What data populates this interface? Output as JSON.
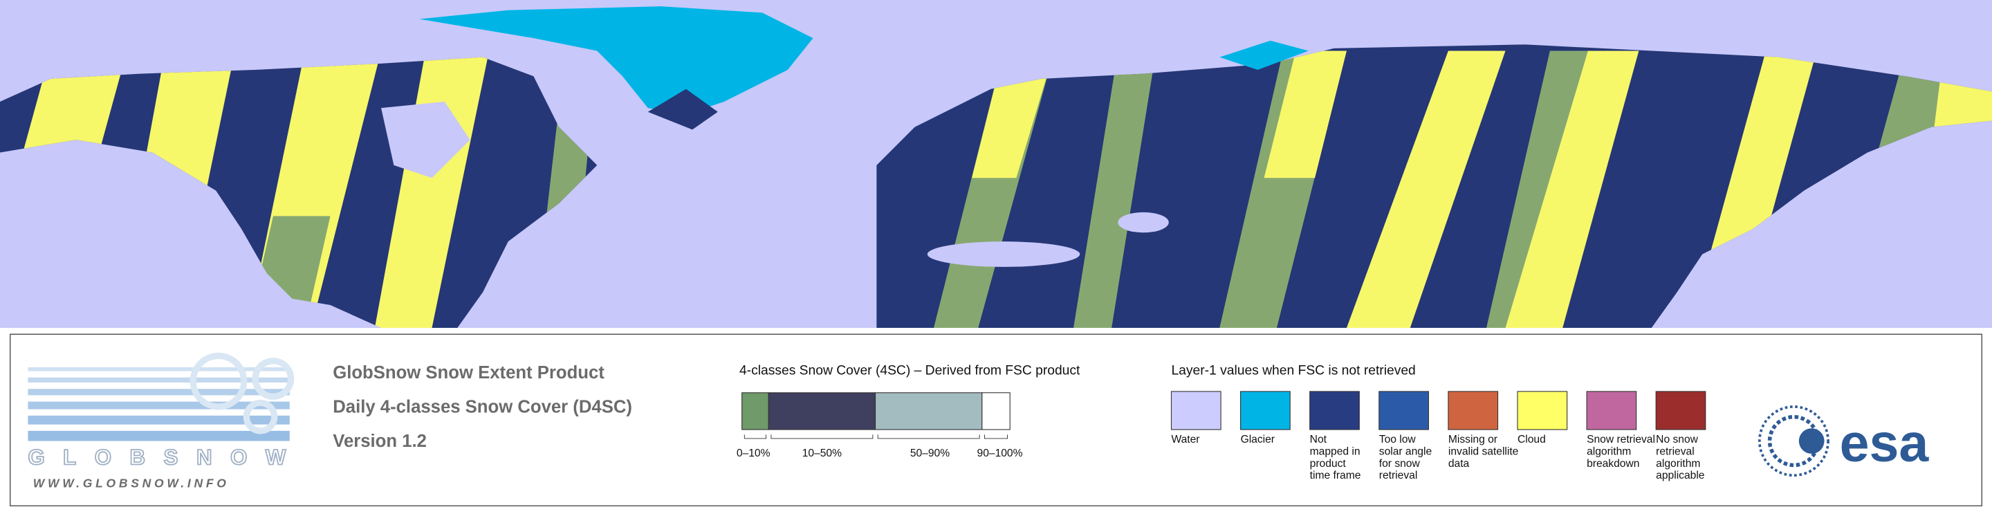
{
  "product": {
    "title": "GlobSnow Snow Extent Product",
    "subtitle": "Daily 4-classes Snow Cover (D4SC)",
    "version": "Version 1.2"
  },
  "branding": {
    "logo_text": "GLOBSNOW",
    "url": "WWW.GLOBSNOW.INFO",
    "agency": "esa"
  },
  "snow_cover_legend": {
    "title": "4-classes Snow Cover (4SC) – Derived from FSC product",
    "classes": [
      {
        "label": "0–10%",
        "color": "#6f9a6a"
      },
      {
        "label": "10–50%",
        "color": "#3f3f60"
      },
      {
        "label": "50–90%",
        "color": "#a3bcc0"
      },
      {
        "label": "90–100%",
        "color": "#ffffff"
      }
    ]
  },
  "layer1_legend": {
    "title": "Layer-1 values when FSC is not retrieved",
    "items": [
      {
        "label": [
          "Water"
        ],
        "color": "#ccccff"
      },
      {
        "label": [
          "Glacier"
        ],
        "color": "#00b4e6"
      },
      {
        "label": [
          "Not",
          "mapped in",
          "product",
          "time frame"
        ],
        "color": "#283c82"
      },
      {
        "label": [
          "Too low",
          "solar angle",
          "for snow",
          "retrieval"
        ],
        "color": "#2b5ba8"
      },
      {
        "label": [
          "Missing or",
          "invalid satellite",
          "data"
        ],
        "color": "#cf6440"
      },
      {
        "label": [
          "Cloud"
        ],
        "color": "#ffff66"
      },
      {
        "label": [
          "Snow retrieval",
          "algorithm",
          "breakdown"
        ],
        "color": "#c067a0"
      },
      {
        "label": [
          "No snow",
          "retrieval",
          "algorithm",
          "applicable"
        ],
        "color": "#9b2d2d"
      }
    ]
  }
}
